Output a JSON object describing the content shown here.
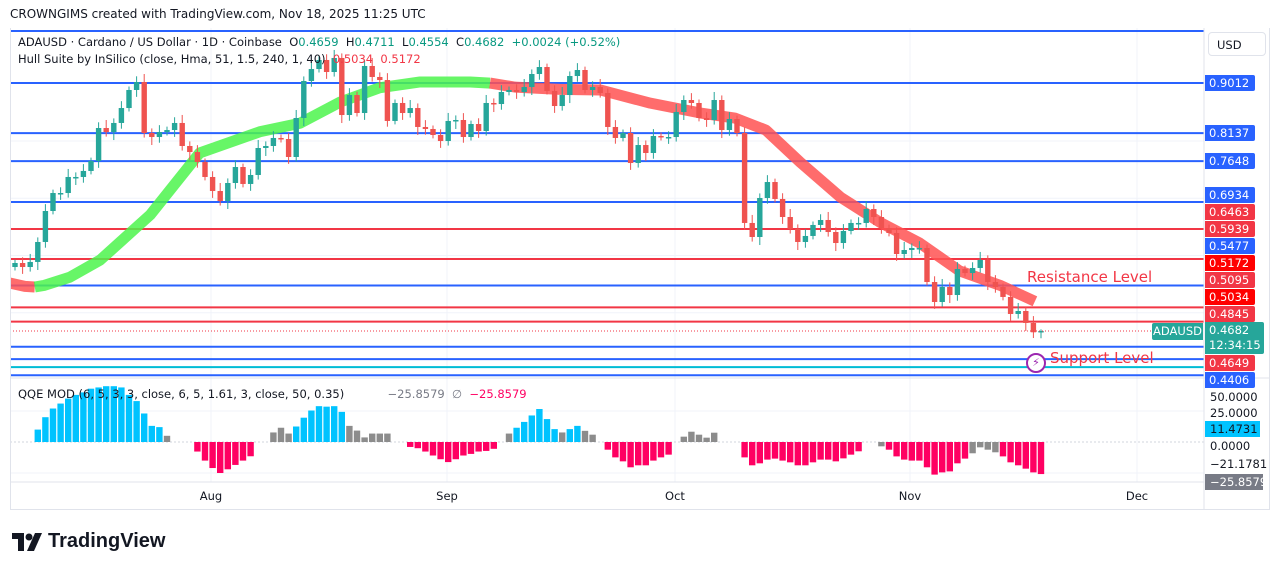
{
  "credit": "CROWNGIMS created with TradingView.com, Nov 18, 2025 11:25 UTC",
  "legend": {
    "symbol": "ADAUSD · Cardano / US Dollar · 1D · Coinbase",
    "o_label": "O",
    "o": "0.4659",
    "h_label": "H",
    "h": "0.4711",
    "l_label": "L",
    "l": "0.4554",
    "c_label": "C",
    "c": "0.4682",
    "change": "+0.0024 (+0.52%)",
    "hull_name": "Hull Suite by InSilico (close, Hma, 51, 1.5, 240, 1, 40)",
    "hull_v1": "0.5034",
    "hull_v2": "0.5172",
    "qqe_name": "QQE MOD (6, 5, 3, 3, close, 6, 5, 1.61, 3, close, 50, 0.35)",
    "qqe_v1": "−25.8579",
    "qqe_sym": "∅",
    "qqe_v2": "−25.8579"
  },
  "axis": {
    "currency": "USD",
    "price_labels": [
      {
        "text": "0.9012",
        "color": "#2962ff"
      },
      {
        "text": "0.8137",
        "color": "#2962ff"
      },
      {
        "text": "0.7648",
        "color": "#2962ff"
      },
      {
        "text": "0.6934",
        "color": "#2962ff"
      },
      {
        "text": "0.6463",
        "color": "#f23645"
      },
      {
        "text": "0.5939",
        "color": "#f23645"
      },
      {
        "text": "0.5477",
        "color": "#2962ff"
      },
      {
        "text": "0.5172",
        "color": "#ff0000"
      },
      {
        "text": "0.5095",
        "color": "#f23645"
      },
      {
        "text": "0.5034",
        "color": "#ff0000"
      },
      {
        "text": "0.4845",
        "color": "#f23645"
      },
      {
        "text": "0.4649",
        "color": "#f23645"
      },
      {
        "text": "0.4406",
        "color": "#2962ff"
      }
    ],
    "current": {
      "symbol": "ADAUSD",
      "price": "0.4682",
      "countdown": "12:34:15",
      "color": "#26a69a"
    },
    "qqe_labels": [
      "50.0000",
      "25.0000",
      "11.4731",
      "0.0000",
      "−21.1781",
      "−25.8579"
    ],
    "time_ticks": [
      "Aug",
      "Sep",
      "Oct",
      "Nov",
      "Dec"
    ]
  },
  "annotations": {
    "resistance": "Resistance Level",
    "support": "Support Level"
  },
  "footer": {
    "brand": "TradingView"
  },
  "chart_data": {
    "type": "candlestick",
    "symbol": "ADAUSD",
    "interval": "1D",
    "x_ticks": [
      "Aug",
      "Sep",
      "Oct",
      "Nov",
      "Dec"
    ],
    "colors": {
      "up": "#26a69a",
      "down": "#ef5350",
      "level_blue": "#2962ff",
      "level_red": "#f23645",
      "level_cyan": "#00bcd4",
      "hull_green": "#4cf54c",
      "hull_red": "#ff5252",
      "qqe_blue": "#00c3ff",
      "qqe_red": "#ff0062",
      "qqe_gray": "#8c8c8c"
    },
    "last_bar": {
      "open": 0.4659,
      "high": 0.4711,
      "low": 0.4554,
      "close": 0.4682
    },
    "first_open": 0.5799,
    "close": [
      0.5869,
      0.5799,
      0.5887,
      0.6236,
      0.6777,
      0.7091,
      0.7091,
      0.7371,
      0.7371,
      0.7476,
      0.765,
      0.8226,
      0.8156,
      0.8314,
      0.8575,
      0.889,
      0.9029,
      0.8139,
      0.8069,
      0.8156,
      0.8191,
      0.8314,
      0.7912,
      0.7807,
      0.7633,
      0.7371,
      0.7126,
      0.6952,
      0.7266,
      0.7545,
      0.7249,
      0.7406,
      0.7877,
      0.7912,
      0.8052,
      0.8034,
      0.772,
      0.8401,
      0.9047,
      0.9256,
      0.9414,
      0.9204,
      0.9449,
      0.8453,
      0.8802,
      0.8488,
      0.9309,
      0.9117,
      0.9064,
      0.8349,
      0.8663,
      0.8488,
      0.8575,
      0.8244,
      0.8209,
      0.8104,
      0.7999,
      0.8349,
      0.8366,
      0.8069,
      0.8296,
      0.8174,
      0.8663,
      0.8645,
      0.8855,
      0.889,
      0.8855,
      0.8942,
      0.9169,
      0.9291,
      0.8872,
      0.861,
      0.8802,
      0.9134,
      0.9239,
      0.889,
      0.8942,
      0.8837,
      0.8244,
      0.8052,
      0.8139,
      0.7615,
      0.7929,
      0.779,
      0.8087,
      0.8069,
      0.8069,
      0.8506,
      0.8715,
      0.8663,
      0.8401,
      0.8366,
      0.8715,
      0.8191,
      0.8383,
      0.8139,
      0.6568,
      0.6323,
      0.7004,
      0.7283,
      0.6987,
      0.6672,
      0.6463,
      0.6236,
      0.6341,
      0.6533,
      0.662,
      0.641,
      0.6218,
      0.6428,
      0.6568,
      0.6568,
      0.6812,
      0.6672,
      0.648,
      0.6393,
      0.6026,
      0.6096,
      0.6131,
      0.6131,
      0.5537,
      0.5188,
      0.545,
      0.531,
      0.5764,
      0.5694,
      0.5782,
      0.5922,
      0.5537,
      0.545,
      0.5276,
      0.4979,
      0.5031,
      0.4822,
      0.4659,
      0.4682
    ],
    "levels": [
      {
        "price": 0.992,
        "color": "blue"
      },
      {
        "price": 0.9012,
        "color": "blue"
      },
      {
        "price": 0.8137,
        "color": "blue"
      },
      {
        "price": 0.7648,
        "color": "blue"
      },
      {
        "price": 0.6934,
        "color": "blue"
      },
      {
        "price": 0.6463,
        "color": "red"
      },
      {
        "price": 0.5939,
        "color": "red"
      },
      {
        "price": 0.5477,
        "color": "blue"
      },
      {
        "price": 0.5095,
        "color": "red"
      },
      {
        "price": 0.4845,
        "color": "red"
      },
      {
        "price": 0.4406,
        "color": "blue"
      },
      {
        "price": 0.419,
        "color": "blue"
      },
      {
        "price": 0.405,
        "color": "cyan"
      },
      {
        "price": 0.391,
        "color": "blue"
      }
    ],
    "hull": [
      {
        "color": "red",
        "points": [
          [
            -0.7,
            0.552
          ],
          [
            1.3,
            0.546
          ],
          [
            2.6,
            0.545
          ]
        ]
      },
      {
        "color": "green",
        "points": [
          [
            2.6,
            0.545
          ],
          [
            3.9,
            0.548
          ],
          [
            7.2,
            0.562
          ],
          [
            11.2,
            0.592
          ],
          [
            17.8,
            0.671
          ],
          [
            24.3,
            0.779
          ],
          [
            32.2,
            0.816
          ],
          [
            37.5,
            0.831
          ],
          [
            42.8,
            0.868
          ],
          [
            48,
            0.893
          ],
          [
            53.3,
            0.903
          ],
          [
            59.9,
            0.903
          ],
          [
            62.5,
            0.901
          ]
        ]
      },
      {
        "color": "red",
        "points": [
          [
            62.5,
            0.901
          ],
          [
            65.8,
            0.894
          ],
          [
            71.7,
            0.89
          ],
          [
            77,
            0.889
          ],
          [
            83.6,
            0.866
          ],
          [
            90.1,
            0.849
          ],
          [
            94.7,
            0.84
          ],
          [
            98.8,
            0.819
          ],
          [
            103.3,
            0.763
          ],
          [
            108.6,
            0.702
          ],
          [
            113.8,
            0.658
          ],
          [
            119,
            0.622
          ],
          [
            124.3,
            0.573
          ],
          [
            129.6,
            0.548
          ],
          [
            134.2,
            0.52
          ]
        ]
      }
    ],
    "qqe": {
      "ylim": [
        -30,
        50
      ],
      "groups": [
        {
          "start": 3,
          "values": [
            10,
            20,
            27,
            31,
            35,
            38,
            40,
            43,
            44,
            45,
            45,
            44,
            38,
            33,
            23,
            13,
            12,
            5
          ],
          "colors": "bbbbbbbbbbbbbbbbbg"
        },
        {
          "start": 24,
          "values": [
            -7.7,
            -15,
            -21,
            -25,
            -22,
            -18.5,
            -15,
            -11.5
          ],
          "colors": "rrrrrrrr"
        },
        {
          "start": 34,
          "values": [
            7.7,
            11.5,
            6.8,
            12.5,
            19.6,
            25.4,
            28.9,
            28.5,
            28.9,
            24.3,
            13,
            9.2,
            3.7,
            6.8,
            6.8,
            6.8
          ],
          "colors": "gggbbbbbbbgggggg"
        },
        {
          "start": 52,
          "values": [
            -4,
            -5,
            -7.7,
            -10.9,
            -13.9,
            -16.2,
            -13.9,
            -10.9,
            -9.6,
            -7.7,
            -7.2,
            -5.5
          ],
          "colors": "rrrrrrrrrrrr"
        },
        {
          "start": 65,
          "values": [
            6.8,
            11.5,
            16.2,
            21.4,
            26.6,
            18.5,
            10.4,
            7.7,
            10.4,
            13,
            9,
            5.9
          ],
          "colors": "gbbbbbbgbbgg"
        },
        {
          "start": 78,
          "values": [
            -6.2,
            -12.4,
            -15.6,
            -20.4,
            -18.8,
            -18.8,
            -15,
            -12.4,
            -10.2
          ],
          "colors": "rrrrrrrrr"
        },
        {
          "start": 88,
          "values": [
            4.3,
            8.3,
            5.9,
            3.5,
            7.5
          ],
          "colors": "ggggg"
        },
        {
          "start": 96,
          "values": [
            -12.4,
            -18.8,
            -17.2,
            -14.2,
            -13.4,
            -15,
            -16.4,
            -18.8,
            -18.8,
            -16.4,
            -14.2,
            -14.2,
            -15.6,
            -13.2,
            -10.2,
            -7.5
          ],
          "colors": "rrrrrrrrrrrrrrrr"
        },
        {
          "start": 114,
          "values": [
            -3.5,
            -6.2,
            -11.6,
            -14.2,
            -15,
            -15,
            -20.4,
            -26.3,
            -24.5,
            -23.7,
            -17.2,
            -13.4,
            -9.1,
            -4.3,
            -6.2,
            -8.3,
            -11.6,
            -16.4,
            -18.8,
            -21.5,
            -24.5,
            -25.86
          ],
          "colors": "grrrrrrrrrrrggggrrrrrr"
        }
      ]
    }
  }
}
